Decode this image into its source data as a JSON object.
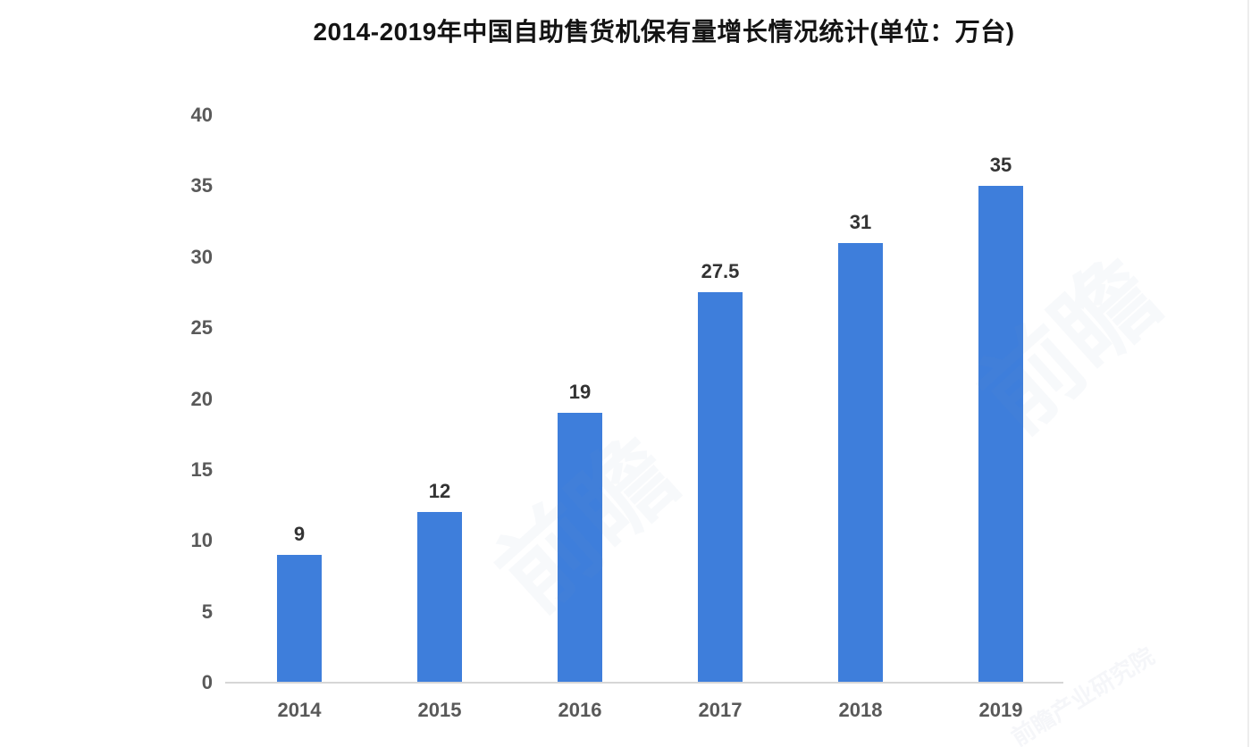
{
  "title": "2014-2019年中国自助售货机保有量增长情况统计(单位：万台)",
  "colors": {
    "bar": "#3e7edb",
    "title_text": "#141414",
    "axis_tick_text": "#595959",
    "data_label_text": "#333333",
    "axis_line": "#d6d6d6",
    "watermark": "#7e93b8"
  },
  "watermarks": {
    "wm1": "前瞻",
    "wm2": "前瞻",
    "wm3": "前瞻产业研究院"
  },
  "chart_data": {
    "type": "bar",
    "title": "2014-2019年中国自助售货机保有量增长情况统计(单位：万台)",
    "categories": [
      "2014",
      "2015",
      "2016",
      "2017",
      "2018",
      "2019"
    ],
    "values": [
      9,
      12,
      19,
      27.5,
      31,
      35
    ],
    "data_labels": [
      "9",
      "12",
      "19",
      "27.5",
      "31",
      "35"
    ],
    "xlabel": "",
    "ylabel": "",
    "unit": "万台",
    "ylim": [
      0,
      40
    ],
    "yticks": [
      0,
      5,
      10,
      15,
      20,
      25,
      30,
      35,
      40
    ],
    "grid": false,
    "legend_position": "none",
    "bar_color": "#3e7edb"
  }
}
